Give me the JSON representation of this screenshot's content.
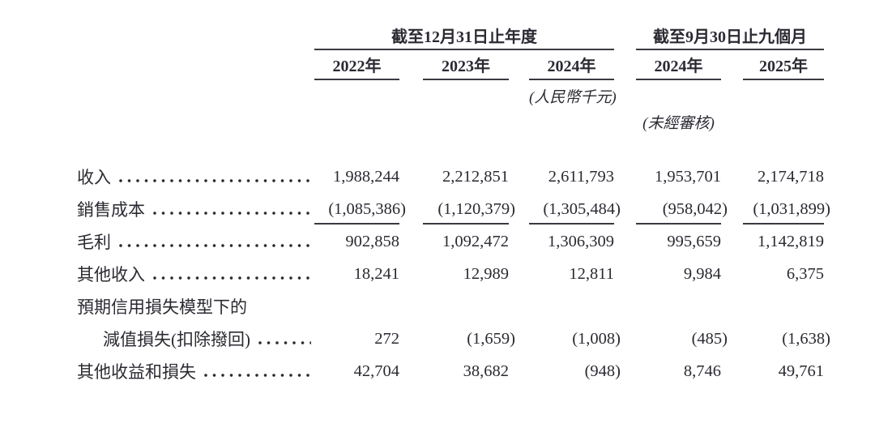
{
  "colors": {
    "ink": "#2a2a32",
    "line": "#3a3a42"
  },
  "table": {
    "header_groups": [
      {
        "title": "截至12月31日止年度",
        "years": [
          "2022年",
          "2023年",
          "2024年"
        ]
      },
      {
        "title": "截至9月30日止九個月",
        "years": [
          "2024年",
          "2025年"
        ]
      }
    ],
    "unit_note": "(人民幣千元)",
    "unaudited_note": "(未經審核)",
    "rows": [
      {
        "label": "收入",
        "indent": false,
        "dots": true,
        "rule_below": false,
        "values": [
          "1,988,244",
          "2,212,851",
          "2,611,793",
          "1,953,701",
          "2,174,718"
        ]
      },
      {
        "label": "銷售成本",
        "indent": false,
        "dots": true,
        "rule_below": true,
        "values": [
          "(1,085,386)",
          "(1,120,379)",
          "(1,305,484)",
          "(958,042)",
          "(1,031,899)"
        ]
      },
      {
        "label": "毛利",
        "indent": false,
        "dots": true,
        "rule_below": false,
        "values": [
          "902,858",
          "1,092,472",
          "1,306,309",
          "995,659",
          "1,142,819"
        ]
      },
      {
        "label": "其他收入",
        "indent": false,
        "dots": true,
        "rule_below": false,
        "values": [
          "18,241",
          "12,989",
          "12,811",
          "9,984",
          "6,375"
        ]
      },
      {
        "label": "預期信用損失模型下的",
        "indent": false,
        "dots": false,
        "rule_below": false,
        "values": null
      },
      {
        "label": "減值損失(扣除撥回)",
        "indent": true,
        "dots": true,
        "rule_below": false,
        "values": [
          "272",
          "(1,659)",
          "(1,008)",
          "(485)",
          "(1,638)"
        ]
      },
      {
        "label": "其他收益和損失",
        "indent": false,
        "dots": true,
        "rule_below": false,
        "values": [
          "42,704",
          "38,682",
          "(948)",
          "8,746",
          "49,761"
        ]
      }
    ]
  }
}
